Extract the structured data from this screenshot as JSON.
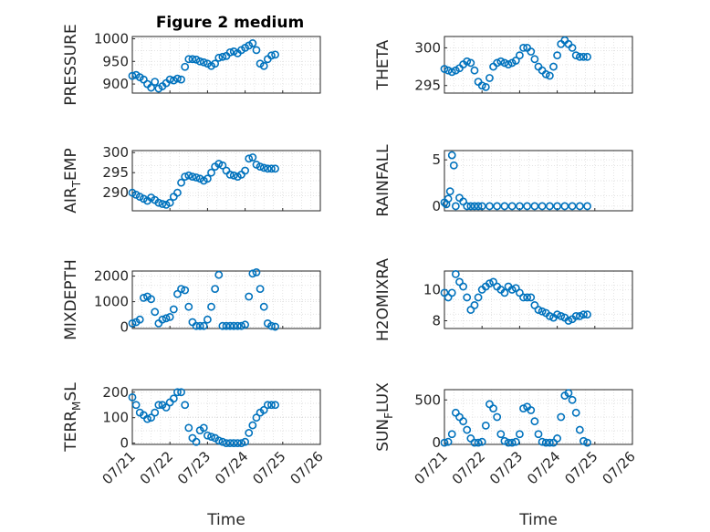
{
  "figure_title": "Figure 2 medium",
  "chart_data": [
    {
      "type": "scatter",
      "ylabel": "PRESSURE",
      "ylabel_sub": "",
      "ylabel_tail": "",
      "yticks": [
        900,
        950,
        1000
      ],
      "ylim": [
        880,
        1005
      ],
      "xlabel": "",
      "x": [
        0,
        0.1,
        0.2,
        0.3,
        0.4,
        0.5,
        0.6,
        0.7,
        0.8,
        0.9,
        1,
        1.1,
        1.2,
        1.3,
        1.4,
        1.5,
        1.6,
        1.7,
        1.8,
        1.9,
        2,
        2.1,
        2.2,
        2.3,
        2.4,
        2.5,
        2.6,
        2.7,
        2.8,
        2.9,
        3,
        3.1,
        3.2,
        3.3,
        3.4,
        3.5,
        3.6,
        3.7,
        3.8
      ],
      "y": [
        918,
        920,
        915,
        910,
        900,
        892,
        905,
        890,
        895,
        902,
        910,
        908,
        912,
        910,
        938,
        955,
        955,
        954,
        950,
        948,
        945,
        940,
        945,
        958,
        960,
        962,
        970,
        972,
        968,
        975,
        980,
        985,
        990,
        975,
        945,
        940,
        955,
        963,
        965
      ]
    },
    {
      "type": "scatter",
      "ylabel": "THETA",
      "ylabel_sub": "",
      "ylabel_tail": "",
      "yticks": [
        295,
        300
      ],
      "ylim": [
        294,
        301.5
      ],
      "xlabel": "",
      "x": [
        0,
        0.1,
        0.2,
        0.3,
        0.4,
        0.5,
        0.6,
        0.7,
        0.8,
        0.9,
        1,
        1.1,
        1.2,
        1.3,
        1.4,
        1.5,
        1.6,
        1.7,
        1.8,
        1.9,
        2,
        2.1,
        2.2,
        2.3,
        2.4,
        2.5,
        2.6,
        2.7,
        2.8,
        2.9,
        3,
        3.1,
        3.2,
        3.3,
        3.4,
        3.5,
        3.6,
        3.7,
        3.8
      ],
      "y": [
        297.2,
        297,
        296.8,
        297,
        297.3,
        297.8,
        298.2,
        298,
        297,
        295.5,
        295,
        294.8,
        296,
        297.5,
        298,
        298.2,
        298,
        297.8,
        298,
        298.3,
        299,
        300,
        300,
        299.5,
        298.5,
        297.5,
        297,
        296.5,
        296.3,
        297.5,
        299,
        300.5,
        301,
        300.5,
        300,
        299,
        298.8,
        298.8,
        298.8
      ]
    },
    {
      "type": "scatter",
      "ylabel": "AIR",
      "ylabel_sub": "T",
      "ylabel_tail": "EMP",
      "yticks": [
        290,
        295,
        300
      ],
      "ylim": [
        285.5,
        300.5
      ],
      "xlabel": "",
      "x": [
        0,
        0.1,
        0.2,
        0.3,
        0.4,
        0.5,
        0.6,
        0.7,
        0.8,
        0.9,
        1,
        1.1,
        1.2,
        1.3,
        1.4,
        1.5,
        1.6,
        1.7,
        1.8,
        1.9,
        2,
        2.1,
        2.2,
        2.3,
        2.4,
        2.5,
        2.6,
        2.7,
        2.8,
        2.9,
        3,
        3.1,
        3.2,
        3.3,
        3.4,
        3.5,
        3.6,
        3.7,
        3.8
      ],
      "y": [
        290,
        289.5,
        289,
        288.5,
        288,
        288.8,
        288.2,
        287.5,
        287.2,
        287,
        287.5,
        289,
        290,
        292.5,
        294,
        294.3,
        294,
        293.8,
        293.5,
        293,
        293.5,
        295,
        296.5,
        297.2,
        296.8,
        295.5,
        294.5,
        294.3,
        294,
        294.5,
        295.5,
        298.5,
        298.8,
        297,
        296.5,
        296.2,
        296,
        296,
        296
      ]
    },
    {
      "type": "scatter",
      "ylabel": "RAINFALL",
      "ylabel_sub": "",
      "ylabel_tail": "",
      "yticks": [
        0,
        5
      ],
      "ylim": [
        -0.5,
        6
      ],
      "xlabel": "",
      "x": [
        0,
        0.05,
        0.1,
        0.15,
        0.2,
        0.25,
        0.3,
        0.4,
        0.5,
        0.6,
        0.7,
        0.8,
        0.9,
        1,
        1.2,
        1.4,
        1.6,
        1.8,
        2,
        2.2,
        2.4,
        2.6,
        2.8,
        3,
        3.2,
        3.4,
        3.6,
        3.8
      ],
      "y": [
        0.4,
        0.2,
        0.8,
        1.6,
        5.5,
        4.4,
        0,
        0.9,
        0.5,
        0,
        0,
        0,
        0,
        0,
        0,
        0,
        0,
        0,
        0,
        0,
        0,
        0,
        0,
        0,
        0,
        0,
        0,
        0
      ]
    },
    {
      "type": "scatter",
      "ylabel": "MIXDEPTH",
      "ylabel_sub": "",
      "ylabel_tail": "",
      "yticks": [
        0,
        1000,
        2000
      ],
      "ylim": [
        -50,
        2200
      ],
      "xlabel": "",
      "x": [
        0,
        0.1,
        0.2,
        0.3,
        0.4,
        0.5,
        0.6,
        0.7,
        0.8,
        0.9,
        1,
        1.1,
        1.2,
        1.3,
        1.4,
        1.5,
        1.6,
        1.7,
        1.8,
        1.9,
        2,
        2.1,
        2.2,
        2.3,
        2.4,
        2.5,
        2.6,
        2.7,
        2.8,
        2.9,
        3,
        3.1,
        3.2,
        3.3,
        3.4,
        3.5,
        3.6,
        3.7,
        3.8
      ],
      "y": [
        150,
        200,
        300,
        1150,
        1200,
        1100,
        600,
        150,
        300,
        350,
        400,
        700,
        1300,
        1500,
        1450,
        800,
        200,
        50,
        50,
        50,
        300,
        800,
        1500,
        2050,
        50,
        50,
        50,
        50,
        50,
        50,
        100,
        1200,
        2100,
        2150,
        1500,
        800,
        150,
        50,
        20
      ]
    },
    {
      "type": "scatter",
      "ylabel": "H2OMIXRA",
      "ylabel_sub": "",
      "ylabel_tail": "",
      "yticks": [
        8,
        10
      ],
      "ylim": [
        7.5,
        11.2
      ],
      "xlabel": "",
      "x": [
        0,
        0.1,
        0.2,
        0.3,
        0.4,
        0.5,
        0.6,
        0.7,
        0.8,
        0.9,
        1,
        1.1,
        1.2,
        1.3,
        1.4,
        1.5,
        1.6,
        1.7,
        1.8,
        1.9,
        2,
        2.1,
        2.2,
        2.3,
        2.4,
        2.5,
        2.6,
        2.7,
        2.8,
        2.9,
        3,
        3.1,
        3.2,
        3.3,
        3.4,
        3.5,
        3.6,
        3.7,
        3.8
      ],
      "y": [
        9.8,
        9.5,
        9.8,
        11,
        10.5,
        10.2,
        9.5,
        8.7,
        9,
        9.5,
        10,
        10.2,
        10.4,
        10.5,
        10.2,
        10,
        9.8,
        10.2,
        10,
        10.1,
        9.8,
        9.5,
        9.5,
        9.5,
        9,
        8.7,
        8.6,
        8.5,
        8.3,
        8.2,
        8.4,
        8.3,
        8.2,
        8,
        8.1,
        8.3,
        8.3,
        8.4,
        8.4
      ]
    },
    {
      "type": "scatter",
      "ylabel": "TERR",
      "ylabel_sub": "M",
      "ylabel_tail": "SL",
      "yticks": [
        0,
        100,
        200
      ],
      "ylim": [
        -5,
        210
      ],
      "xlabel": "Time",
      "x": [
        0,
        0.1,
        0.2,
        0.3,
        0.4,
        0.5,
        0.6,
        0.7,
        0.8,
        0.9,
        1,
        1.1,
        1.2,
        1.3,
        1.4,
        1.5,
        1.6,
        1.7,
        1.8,
        1.9,
        2,
        2.1,
        2.2,
        2.3,
        2.4,
        2.5,
        2.6,
        2.7,
        2.8,
        2.9,
        3,
        3.1,
        3.2,
        3.3,
        3.4,
        3.5,
        3.6,
        3.7,
        3.8
      ],
      "y": [
        180,
        150,
        120,
        110,
        95,
        100,
        120,
        150,
        150,
        140,
        160,
        175,
        200,
        200,
        150,
        60,
        20,
        5,
        50,
        60,
        30,
        25,
        20,
        10,
        5,
        0,
        0,
        0,
        0,
        0,
        5,
        40,
        70,
        100,
        120,
        130,
        150,
        150,
        150
      ]
    },
    {
      "type": "scatter",
      "ylabel": "SUN",
      "ylabel_sub": "F",
      "ylabel_tail": "LUX",
      "yticks": [
        0,
        500
      ],
      "ylim": [
        -20,
        620
      ],
      "xlabel": "Time",
      "x": [
        0,
        0.1,
        0.2,
        0.3,
        0.4,
        0.5,
        0.6,
        0.7,
        0.8,
        0.9,
        1,
        1.1,
        1.2,
        1.3,
        1.4,
        1.5,
        1.6,
        1.7,
        1.8,
        1.9,
        2,
        2.1,
        2.2,
        2.3,
        2.4,
        2.5,
        2.6,
        2.7,
        2.8,
        2.9,
        3,
        3.1,
        3.2,
        3.3,
        3.4,
        3.5,
        3.6,
        3.7,
        3.8
      ],
      "y": [
        0,
        10,
        100,
        350,
        300,
        250,
        150,
        50,
        0,
        0,
        10,
        200,
        450,
        400,
        300,
        100,
        20,
        0,
        0,
        10,
        100,
        400,
        420,
        380,
        250,
        100,
        10,
        0,
        0,
        0,
        50,
        300,
        550,
        580,
        500,
        350,
        150,
        20,
        0
      ]
    }
  ],
  "xticks": [
    "07/21",
    "07/22",
    "07/23",
    "07/24",
    "07/25",
    "07/26"
  ],
  "xlim": [
    0,
    5
  ]
}
